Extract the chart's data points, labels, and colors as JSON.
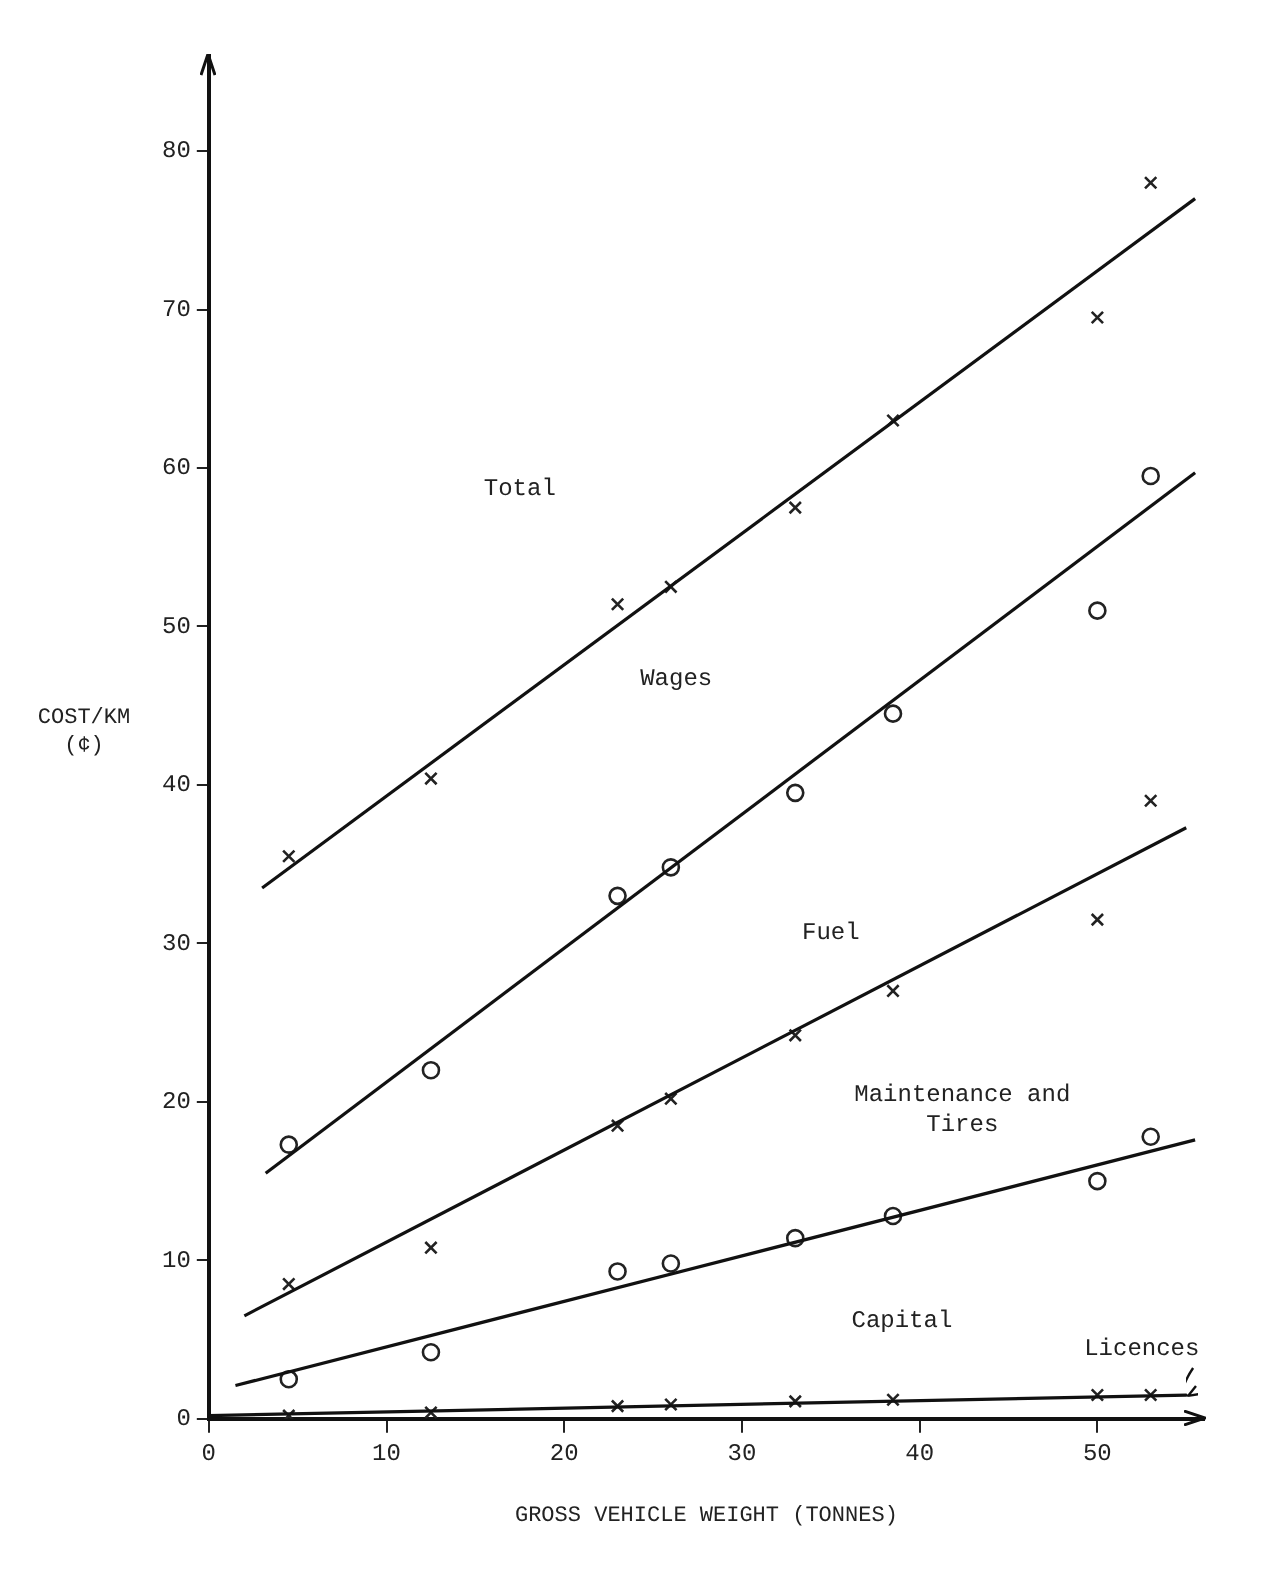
{
  "chart_data": {
    "type": "scatter",
    "xlabel": "GROSS VEHICLE WEIGHT (TONNES)",
    "ylabel": "COST/KM\n(¢)",
    "xlim": [
      0,
      56
    ],
    "ylim": [
      0,
      86
    ],
    "xticks": [
      0,
      10,
      20,
      30,
      40,
      50
    ],
    "yticks": [
      0,
      10,
      20,
      30,
      40,
      50,
      60,
      70,
      80
    ],
    "grid": false,
    "legend": false,
    "series": [
      {
        "type": "line",
        "marker": "none",
        "color": "#111111",
        "x": [
          3,
          55.5
        ],
        "values": [
          33.5,
          77
        ]
      },
      {
        "type": "line",
        "marker": "none",
        "color": "#111111",
        "x": [
          3.2,
          55.5
        ],
        "values": [
          15.5,
          59.7
        ]
      },
      {
        "type": "line",
        "marker": "none",
        "color": "#111111",
        "x": [
          2,
          55
        ],
        "values": [
          6.5,
          37.3
        ]
      },
      {
        "type": "line",
        "marker": "none",
        "color": "#111111",
        "x": [
          1.5,
          55.5
        ],
        "values": [
          2.1,
          17.6
        ]
      },
      {
        "type": "line",
        "marker": "none",
        "color": "#111111",
        "x": [
          0,
          55
        ],
        "values": [
          0.2,
          1.5
        ]
      },
      {
        "type": "scatter",
        "marker": "cross",
        "color": "#222222",
        "x": [
          4.5,
          12.5,
          23,
          26,
          33,
          38.5,
          50,
          53
        ],
        "values": [
          35.5,
          40.4,
          51.4,
          52.5,
          57.5,
          63,
          69.5,
          78
        ]
      },
      {
        "type": "scatter",
        "marker": "circle",
        "color": "#222222",
        "x": [
          4.5,
          12.5,
          23,
          26,
          33,
          38.5,
          50,
          53
        ],
        "values": [
          17.3,
          22,
          33,
          34.8,
          39.5,
          44.5,
          51,
          59.5
        ]
      },
      {
        "type": "scatter",
        "marker": "cross",
        "color": "#222222",
        "x": [
          4.5,
          12.5,
          23,
          26,
          33,
          38.5,
          50,
          53
        ],
        "values": [
          8.5,
          10.8,
          18.5,
          20.2,
          24.2,
          27,
          31.5,
          39
        ]
      },
      {
        "type": "scatter",
        "marker": "circle",
        "color": "#222222",
        "x": [
          4.5,
          12.5,
          23,
          26,
          33,
          38.5,
          50,
          53
        ],
        "values": [
          2.5,
          4.2,
          9.3,
          9.8,
          11.4,
          12.8,
          15,
          17.8
        ]
      },
      {
        "type": "scatter",
        "marker": "cross",
        "color": "#222222",
        "x": [
          4.5,
          12.5,
          23,
          26,
          33,
          38.5,
          50,
          53
        ],
        "values": [
          0.2,
          0.4,
          0.8,
          0.9,
          1.1,
          1.2,
          1.5,
          1.5
        ]
      }
    ],
    "annotations": [
      "Total",
      "Wages",
      "Fuel",
      "Maintenance and\nTires",
      "Capital",
      "Licences"
    ]
  }
}
